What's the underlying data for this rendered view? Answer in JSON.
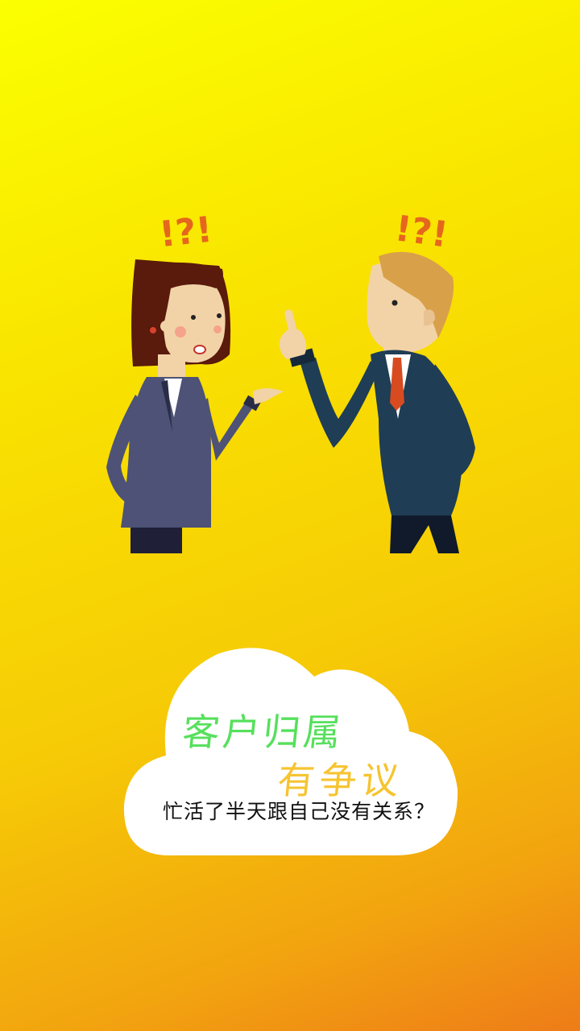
{
  "title_line1": "客户归属",
  "title_line2": "有争议",
  "subtitle": "忙活了半天跟自己没有关系？",
  "colors": {
    "background_top": "#fbff00",
    "background_bottom": "#ee7c18",
    "title_line1": "#56e05c",
    "title_line2": "#f6c431",
    "exclamation": "#e5671d"
  },
  "exclamations": {
    "woman": "!?!",
    "man": "!?!"
  }
}
